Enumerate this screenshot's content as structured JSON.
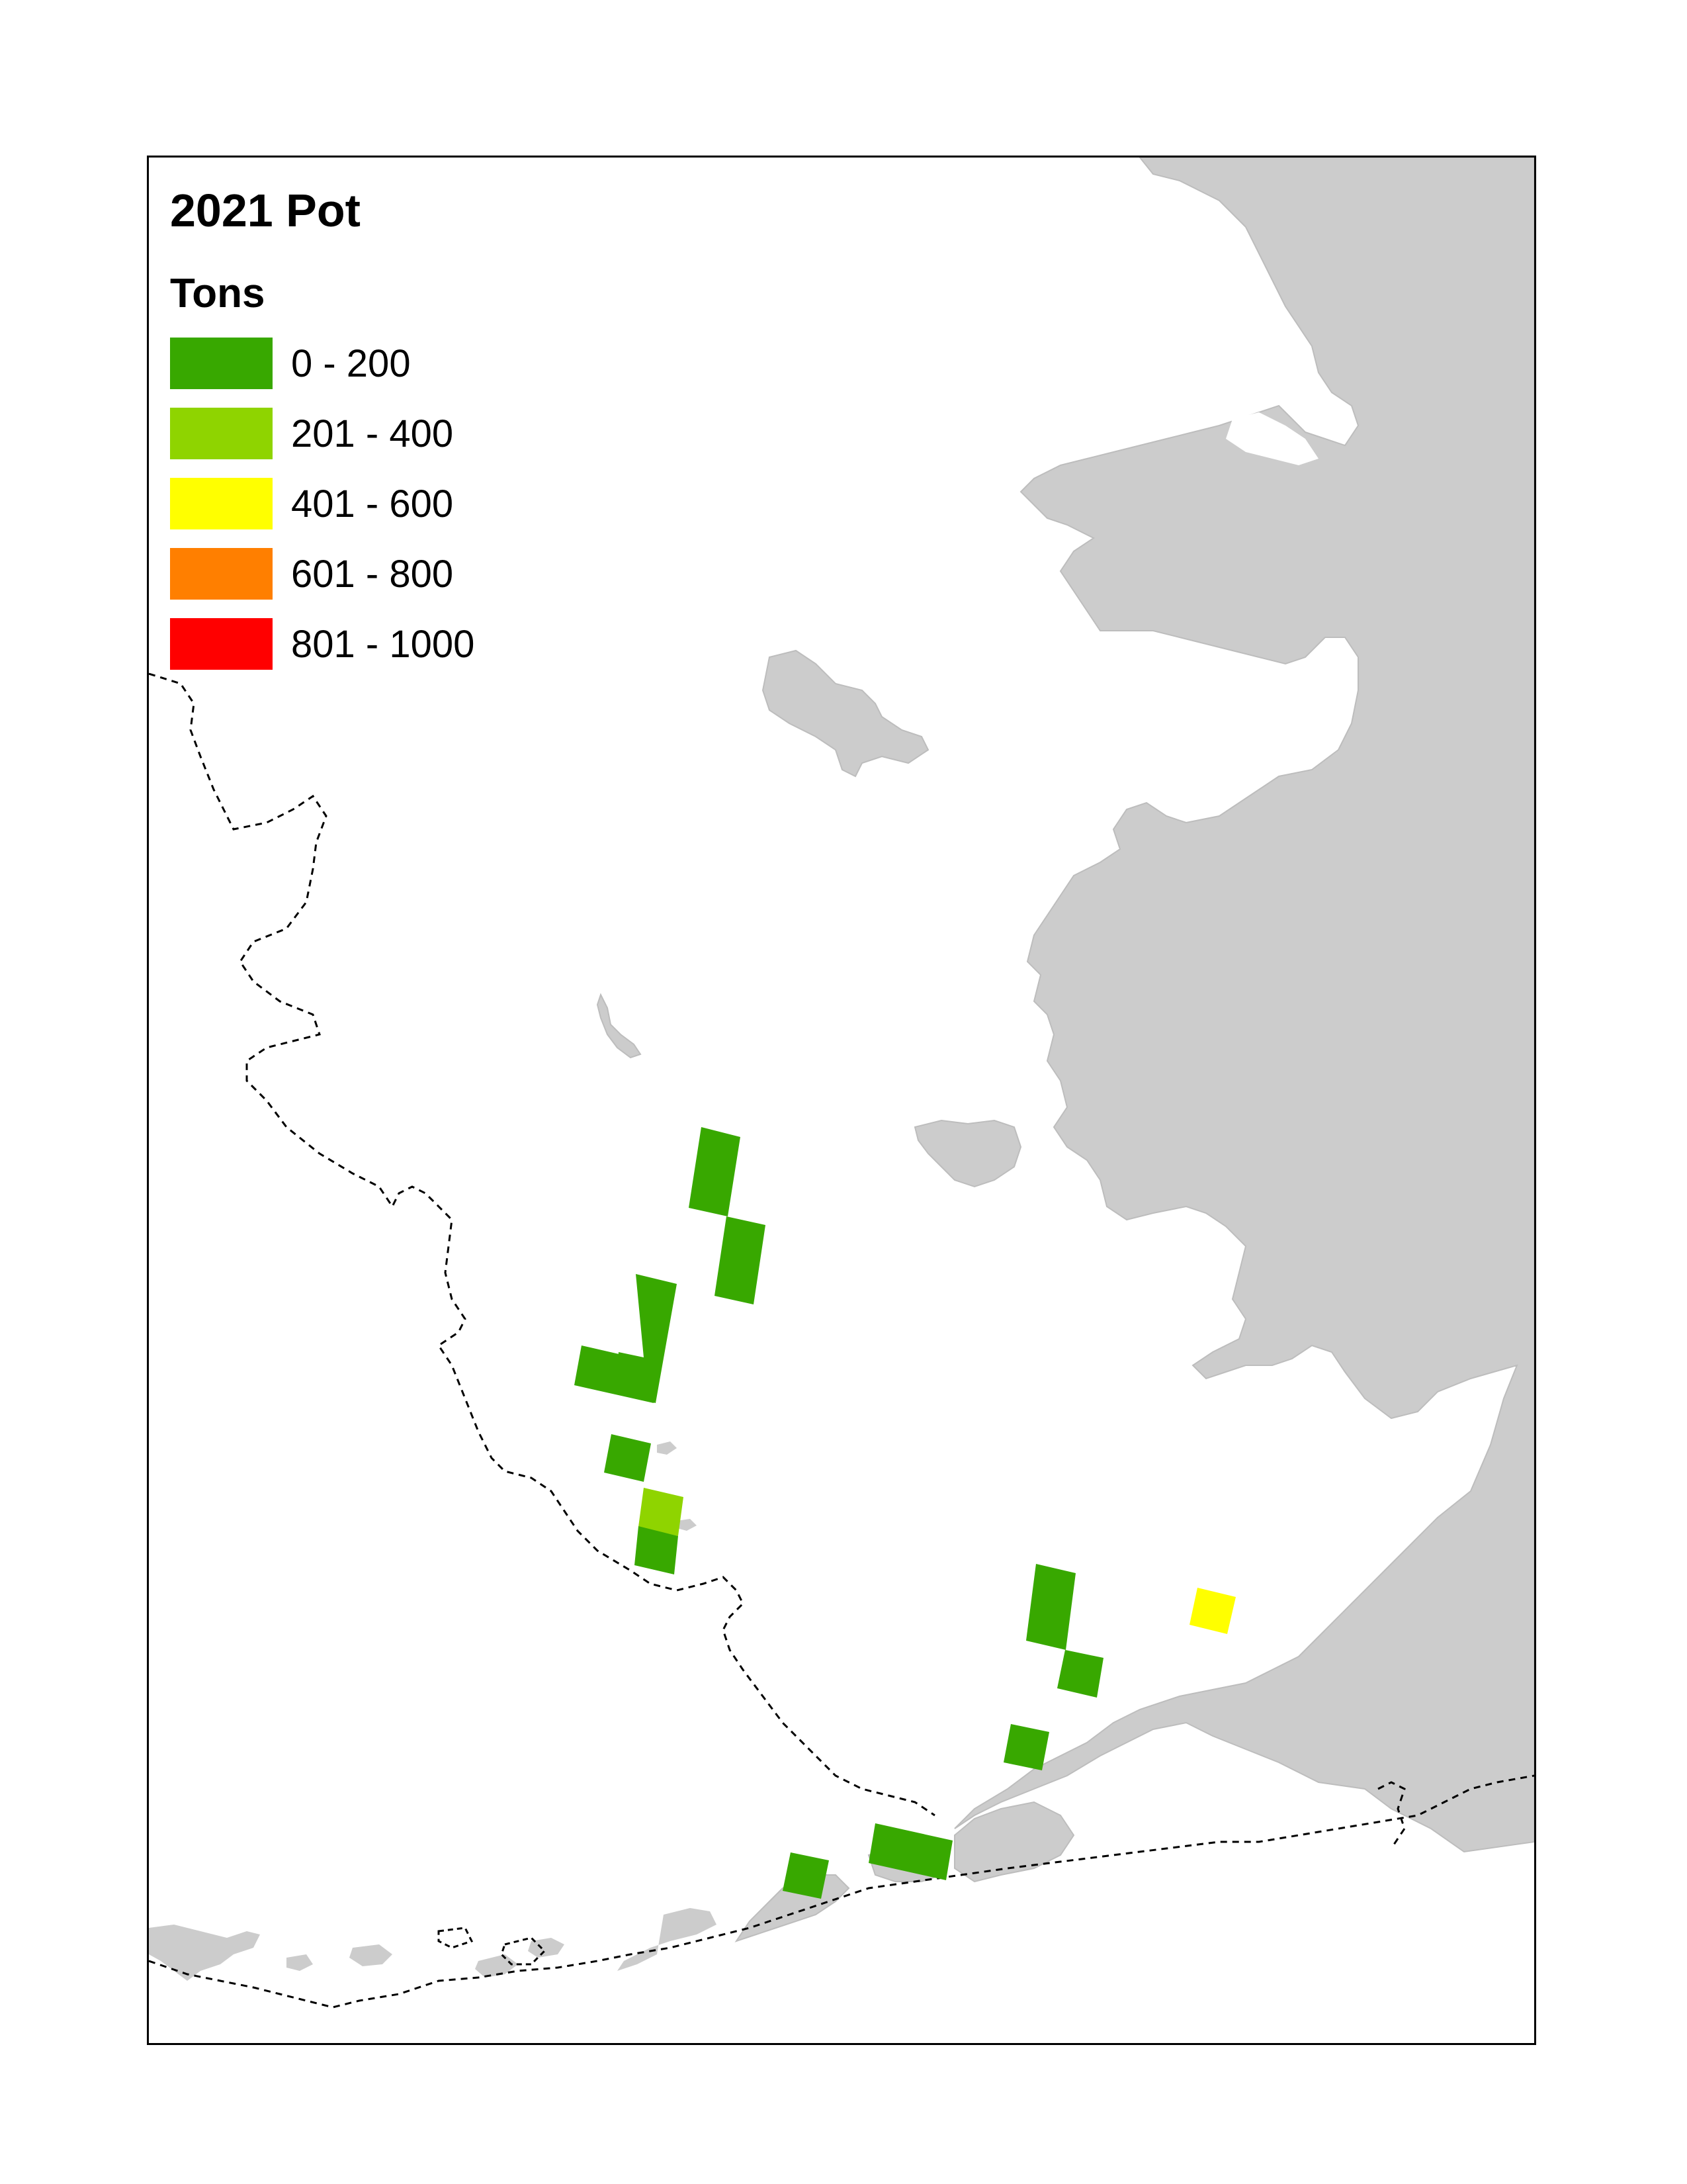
{
  "map": {
    "title": "2021 Pot",
    "legend": {
      "title": "Tons",
      "classes": [
        {
          "label": "0 - 200",
          "color": "#38a800"
        },
        {
          "label": "201 - 400",
          "color": "#8fd400"
        },
        {
          "label": "401 - 600",
          "color": "#ffff00"
        },
        {
          "label": "601 - 800",
          "color": "#ff7f00"
        },
        {
          "label": "801 - 1000",
          "color": "#ff0000"
        }
      ]
    },
    "colors": {
      "land": "#cccccc",
      "water": "#ffffff",
      "frame": "#000000",
      "boundary_line": "#000000"
    },
    "cells": [
      {
        "tons_class": "0 - 200"
      },
      {
        "tons_class": "0 - 200"
      },
      {
        "tons_class": "0 - 200"
      },
      {
        "tons_class": "0 - 200"
      },
      {
        "tons_class": "0 - 200"
      },
      {
        "tons_class": "201 - 400"
      },
      {
        "tons_class": "0 - 200"
      },
      {
        "tons_class": "0 - 200"
      },
      {
        "tons_class": "0 - 200"
      },
      {
        "tons_class": "0 - 200"
      },
      {
        "tons_class": "401 - 600"
      },
      {
        "tons_class": "0 - 200"
      },
      {
        "tons_class": "0 - 200"
      }
    ]
  }
}
